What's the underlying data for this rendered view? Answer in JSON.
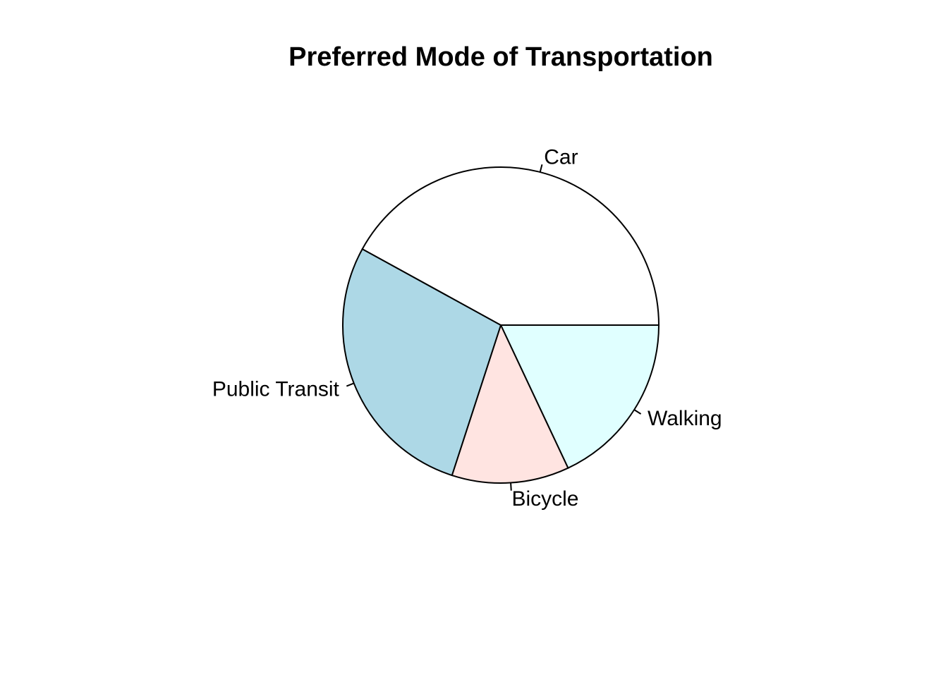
{
  "chart_data": {
    "type": "pie",
    "title": "Preferred Mode of Transportation",
    "slices": [
      {
        "label": "Walking",
        "value": 18,
        "color": "#e0ffff"
      },
      {
        "label": "Bicycle",
        "value": 12,
        "color": "#ffe4e1"
      },
      {
        "label": "Public Transit",
        "value": 28,
        "color": "#add8e6"
      },
      {
        "label": "Car",
        "value": 42,
        "color": "#ffffff"
      }
    ],
    "start_angle_deg": 0,
    "direction": "clockwise"
  }
}
